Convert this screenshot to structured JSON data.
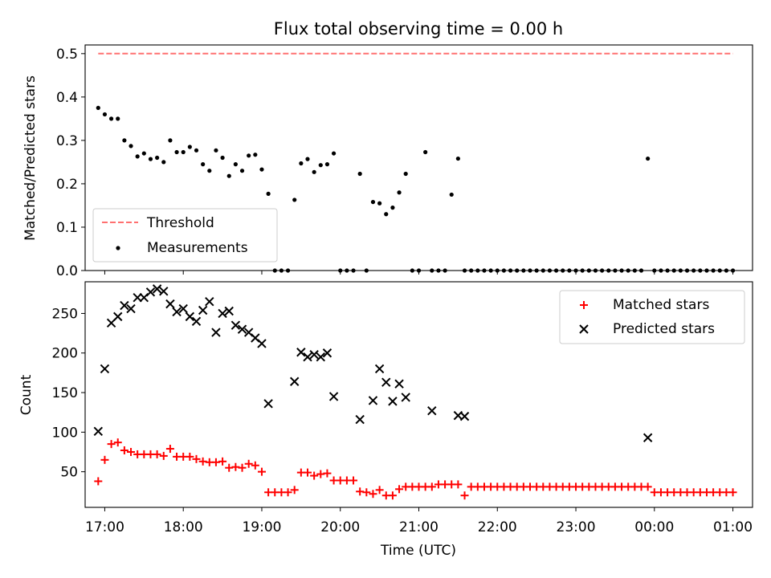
{
  "chart_data": [
    {
      "type": "scatter",
      "title": "Flux total observing time = 0.00 h",
      "xlabel": "",
      "ylabel": "Matched/Predicted stars",
      "ylim": [
        0,
        0.52
      ],
      "xlim": [
        "16:45",
        "01:15"
      ],
      "yticks": [
        "0.0",
        "0.1",
        "0.2",
        "0.3",
        "0.4",
        "0.5"
      ],
      "yticks_values": [
        0.0,
        0.1,
        0.2,
        0.3,
        0.4,
        0.5
      ],
      "legend_position": "lower-left",
      "grid": false,
      "series": [
        {
          "name": "Threshold",
          "style": "dashed-line",
          "color": "#ff7070",
          "x": [
            "16:55",
            "01:00"
          ],
          "y": [
            0.5,
            0.5
          ]
        },
        {
          "name": "Measurements",
          "style": "dots",
          "color": "#000000",
          "x": [
            "16:55",
            "17:00",
            "17:05",
            "17:10",
            "17:15",
            "17:20",
            "17:25",
            "17:30",
            "17:35",
            "17:40",
            "17:45",
            "17:50",
            "17:55",
            "18:00",
            "18:05",
            "18:10",
            "18:15",
            "18:20",
            "18:25",
            "18:30",
            "18:35",
            "18:40",
            "18:45",
            "18:50",
            "18:55",
            "19:00",
            "19:05",
            "19:10",
            "19:15",
            "19:20",
            "19:25",
            "19:30",
            "19:35",
            "19:40",
            "19:45",
            "19:50",
            "19:55",
            "20:00",
            "20:05",
            "20:10",
            "20:15",
            "20:20",
            "20:25",
            "20:30",
            "20:35",
            "20:40",
            "20:45",
            "20:50",
            "20:55",
            "21:00",
            "21:05",
            "21:10",
            "21:15",
            "21:20",
            "21:25",
            "21:30",
            "21:35",
            "21:40",
            "21:45",
            "21:50",
            "21:55",
            "22:00",
            "22:05",
            "22:10",
            "22:15",
            "22:20",
            "22:25",
            "22:30",
            "22:35",
            "22:40",
            "22:45",
            "22:50",
            "22:55",
            "23:00",
            "23:05",
            "23:10",
            "23:15",
            "23:20",
            "23:25",
            "23:30",
            "23:35",
            "23:40",
            "23:45",
            "23:50",
            "23:55",
            "00:00",
            "00:05",
            "00:10",
            "00:15",
            "00:20",
            "00:25",
            "00:30",
            "00:35",
            "00:40",
            "00:45",
            "00:50",
            "00:55",
            "01:00"
          ],
          "y": [
            0.375,
            0.36,
            0.35,
            0.35,
            0.3,
            0.287,
            0.263,
            0.27,
            0.257,
            0.26,
            0.25,
            0.3,
            0.273,
            0.273,
            0.285,
            0.277,
            0.245,
            0.23,
            0.277,
            0.26,
            0.218,
            0.245,
            0.23,
            0.265,
            0.267,
            0.233,
            0.177,
            0,
            0,
            0,
            0.163,
            0.247,
            0.257,
            0.227,
            0.243,
            0.245,
            0.27,
            0,
            0,
            0,
            0.223,
            0,
            0.158,
            0.155,
            0.13,
            0.145,
            0.18,
            0.223,
            0,
            0,
            0.273,
            0,
            0,
            0,
            0.175,
            0.258,
            0,
            0,
            0,
            0,
            0,
            0,
            0,
            0,
            0,
            0,
            0,
            0,
            0,
            0,
            0,
            0,
            0,
            0,
            0,
            0,
            0,
            0,
            0,
            0,
            0,
            0,
            0,
            0,
            0.258,
            0,
            0,
            0,
            0,
            0,
            0,
            0,
            0,
            0,
            0,
            0,
            0,
            0
          ]
        }
      ]
    },
    {
      "type": "scatter",
      "title": "",
      "xlabel": "Time (UTC)",
      "ylabel": "Count",
      "ylim": [
        5,
        290
      ],
      "xlim": [
        "16:45",
        "01:15"
      ],
      "xticks": [
        "17:00",
        "18:00",
        "19:00",
        "20:00",
        "21:00",
        "22:00",
        "23:00",
        "00:00",
        "01:00"
      ],
      "yticks": [
        "50",
        "100",
        "150",
        "200",
        "250"
      ],
      "yticks_values": [
        50,
        100,
        150,
        200,
        250
      ],
      "legend_position": "top-right",
      "grid": false,
      "series": [
        {
          "name": "Matched stars",
          "style": "plus",
          "color": "#ff0000",
          "x": [
            "16:55",
            "17:00",
            "17:05",
            "17:10",
            "17:15",
            "17:20",
            "17:25",
            "17:30",
            "17:35",
            "17:40",
            "17:45",
            "17:50",
            "17:55",
            "18:00",
            "18:05",
            "18:10",
            "18:15",
            "18:20",
            "18:25",
            "18:30",
            "18:35",
            "18:40",
            "18:45",
            "18:50",
            "18:55",
            "19:00",
            "19:05",
            "19:10",
            "19:15",
            "19:20",
            "19:25",
            "19:30",
            "19:35",
            "19:40",
            "19:45",
            "19:50",
            "19:55",
            "20:00",
            "20:05",
            "20:10",
            "20:15",
            "20:20",
            "20:25",
            "20:30",
            "20:35",
            "20:40",
            "20:45",
            "20:50",
            "20:55",
            "21:00",
            "21:05",
            "21:10",
            "21:15",
            "21:20",
            "21:25",
            "21:30",
            "21:35",
            "21:40",
            "21:45",
            "21:50",
            "21:55",
            "22:00",
            "22:05",
            "22:10",
            "22:15",
            "22:20",
            "22:25",
            "22:30",
            "22:35",
            "22:40",
            "22:45",
            "22:50",
            "22:55",
            "23:00",
            "23:05",
            "23:10",
            "23:15",
            "23:20",
            "23:25",
            "23:30",
            "23:35",
            "23:40",
            "23:45",
            "23:50",
            "23:55",
            "00:00",
            "00:05",
            "00:10",
            "00:15",
            "00:20",
            "00:25",
            "00:30",
            "00:35",
            "00:40",
            "00:45",
            "00:50",
            "00:55",
            "01:00"
          ],
          "y": [
            38,
            65,
            85,
            87,
            77,
            75,
            72,
            72,
            72,
            72,
            70,
            79,
            69,
            69,
            69,
            66,
            63,
            62,
            62,
            63,
            55,
            56,
            55,
            60,
            58,
            50,
            24,
            24,
            24,
            24,
            27,
            49,
            49,
            45,
            47,
            48,
            39,
            39,
            39,
            39,
            25,
            24,
            22,
            27,
            20,
            20,
            28,
            31,
            31,
            31,
            31,
            31,
            34,
            34,
            34,
            34,
            20,
            31,
            31,
            31,
            31,
            31,
            31,
            31,
            31,
            31,
            31,
            31,
            31,
            31,
            31,
            31,
            31,
            31,
            31,
            31,
            31,
            31,
            31,
            31,
            31,
            31,
            31,
            31,
            31,
            24,
            24,
            24,
            24,
            24,
            24,
            24,
            24,
            24,
            24,
            24,
            24,
            24
          ]
        },
        {
          "name": "Predicted stars",
          "style": "x",
          "color": "#000000",
          "x": [
            "16:55",
            "17:00",
            "17:05",
            "17:10",
            "17:15",
            "17:20",
            "17:25",
            "17:30",
            "17:35",
            "17:40",
            "17:45",
            "17:50",
            "17:55",
            "18:00",
            "18:05",
            "18:10",
            "18:15",
            "18:20",
            "18:25",
            "18:30",
            "18:35",
            "18:40",
            "18:45",
            "18:50",
            "18:55",
            "19:00",
            "19:05",
            "19:25",
            "19:30",
            "19:35",
            "19:40",
            "19:45",
            "19:50",
            "19:55",
            "20:15",
            "20:25",
            "20:30",
            "20:35",
            "20:40",
            "20:45",
            "20:50",
            "21:10",
            "21:30",
            "21:35",
            "23:55"
          ],
          "y": [
            101,
            180,
            238,
            246,
            260,
            256,
            270,
            270,
            277,
            281,
            278,
            262,
            252,
            256,
            246,
            240,
            254,
            265,
            226,
            250,
            253,
            235,
            230,
            226,
            219,
            212,
            136,
            164,
            201,
            195,
            198,
            195,
            200,
            145,
            116,
            140,
            180,
            163,
            139,
            161,
            144,
            127,
            121,
            120,
            93
          ]
        }
      ]
    }
  ]
}
